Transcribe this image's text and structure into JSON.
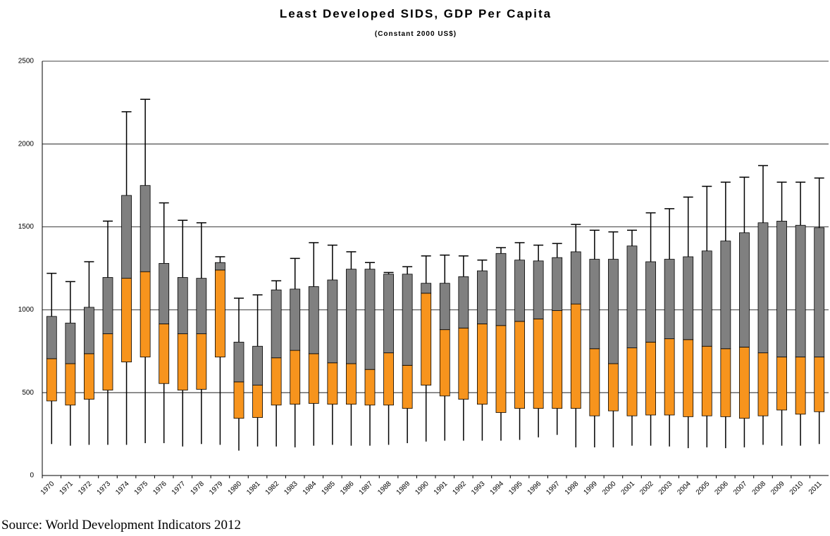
{
  "chart_data": {
    "type": "box",
    "title": "Least Developed SIDS, GDP Per Capita",
    "subtitle": "(Constant 2000 US$)",
    "source": "Source: World Development Indicators 2012",
    "categories": [
      "1970",
      "1971",
      "1972",
      "1973",
      "1974",
      "1975",
      "1976",
      "1977",
      "1978",
      "1979",
      "1980",
      "1981",
      "1982",
      "1983",
      "1984",
      "1985",
      "1986",
      "1987",
      "1988",
      "1989",
      "1990",
      "1991",
      "1992",
      "1993",
      "1994",
      "1995",
      "1996",
      "1997",
      "1998",
      "1999",
      "2000",
      "2001",
      "2002",
      "2003",
      "2004",
      "2005",
      "2006",
      "2007",
      "2008",
      "2009",
      "2010",
      "2011"
    ],
    "min": [
      190,
      180,
      185,
      185,
      185,
      195,
      195,
      175,
      190,
      185,
      150,
      175,
      175,
      170,
      180,
      185,
      180,
      180,
      185,
      195,
      205,
      210,
      210,
      210,
      210,
      215,
      230,
      245,
      170,
      170,
      170,
      180,
      180,
      175,
      165,
      170,
      165,
      170,
      185,
      180,
      180,
      190
    ],
    "q1": [
      450,
      425,
      460,
      515,
      685,
      715,
      555,
      515,
      520,
      715,
      345,
      350,
      425,
      430,
      435,
      430,
      430,
      425,
      425,
      405,
      545,
      480,
      460,
      430,
      380,
      405,
      405,
      405,
      405,
      360,
      390,
      360,
      365,
      365,
      355,
      360,
      355,
      345,
      360,
      395,
      370,
      385
    ],
    "median": [
      705,
      675,
      735,
      855,
      1190,
      1230,
      915,
      855,
      855,
      1240,
      565,
      545,
      710,
      755,
      735,
      680,
      675,
      640,
      740,
      665,
      1100,
      880,
      890,
      915,
      905,
      930,
      945,
      995,
      1035,
      765,
      675,
      770,
      805,
      825,
      820,
      780,
      765,
      775,
      740,
      715,
      715,
      715
    ],
    "q3": [
      960,
      920,
      1015,
      1195,
      1690,
      1750,
      1280,
      1195,
      1190,
      1285,
      805,
      780,
      1120,
      1125,
      1140,
      1180,
      1245,
      1245,
      1215,
      1215,
      1160,
      1160,
      1200,
      1235,
      1340,
      1300,
      1295,
      1315,
      1350,
      1305,
      1305,
      1385,
      1290,
      1305,
      1320,
      1355,
      1415,
      1465,
      1525,
      1535,
      1510,
      1495
    ],
    "max": [
      1220,
      1170,
      1290,
      1535,
      2195,
      2270,
      1645,
      1540,
      1525,
      1320,
      1070,
      1090,
      1175,
      1310,
      1405,
      1390,
      1350,
      1285,
      1225,
      1260,
      1325,
      1330,
      1325,
      1300,
      1375,
      1405,
      1390,
      1400,
      1515,
      1480,
      1470,
      1480,
      1585,
      1610,
      1680,
      1745,
      1770,
      1800,
      1870,
      1770,
      1770,
      1795
    ],
    "lower_color": "#f7941d",
    "upper_color": "#808080",
    "ylim": [
      0,
      2500
    ],
    "yticks": [
      0,
      500,
      1000,
      1500,
      2000,
      2500
    ],
    "grid": true
  }
}
